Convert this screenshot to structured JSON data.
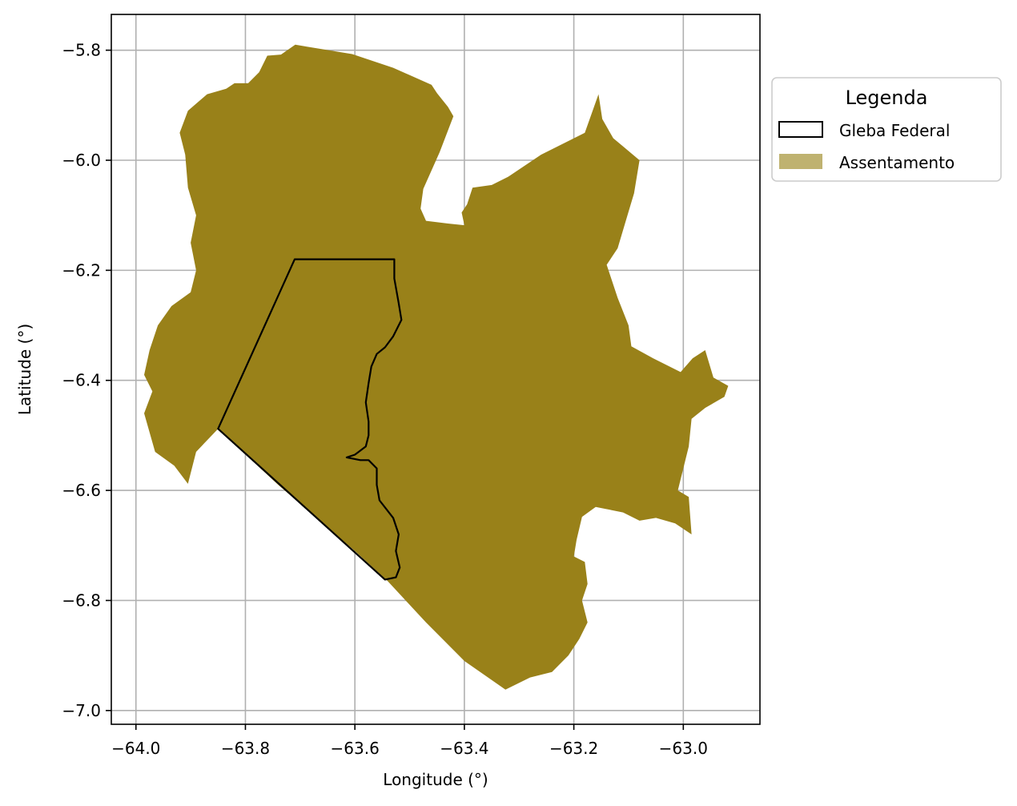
{
  "chart_data": {
    "type": "map",
    "xlabel": "Longitude (°)",
    "ylabel": "Latitude (°)",
    "xlim": [
      -64.045,
      -62.86
    ],
    "ylim": [
      -7.025,
      -5.735
    ],
    "x_ticks": [
      -64.0,
      -63.8,
      -63.6,
      -63.4,
      -63.2,
      -63.0
    ],
    "x_tick_labels": [
      "−64.0",
      "−63.8",
      "−63.6",
      "−63.4",
      "−63.2",
      "−63.0"
    ],
    "y_ticks": [
      -5.8,
      -6.0,
      -6.2,
      -6.4,
      -6.6,
      -6.8,
      -7.0
    ],
    "y_tick_labels": [
      "−5.8",
      "−6.0",
      "−6.2",
      "−6.4",
      "−6.6",
      "−6.8",
      "−7.0"
    ],
    "grid": true,
    "legend_placement": "outside-right-top",
    "legend": {
      "title": "Legenda",
      "entries": [
        {
          "label": "Gleba Federal",
          "style": "outline",
          "color": "#000000"
        },
        {
          "label": "Assentamento",
          "style": "fill",
          "color": "#bfb270"
        }
      ]
    },
    "layers": {
      "assentamento": {
        "name": "Assentamento",
        "color": "#998119",
        "coords": [
          [
            -63.709,
            -5.79
          ],
          [
            -63.605,
            -5.807
          ],
          [
            -63.53,
            -5.832
          ],
          [
            -63.46,
            -5.863
          ],
          [
            -63.45,
            -5.878
          ],
          [
            -63.43,
            -5.903
          ],
          [
            -63.42,
            -5.92
          ],
          [
            -63.445,
            -5.985
          ],
          [
            -63.475,
            -6.052
          ],
          [
            -63.48,
            -6.088
          ],
          [
            -63.47,
            -6.11
          ],
          [
            -63.43,
            -6.115
          ],
          [
            -63.4,
            -6.118
          ],
          [
            -63.405,
            -6.095
          ],
          [
            -63.395,
            -6.08
          ],
          [
            -63.385,
            -6.05
          ],
          [
            -63.35,
            -6.045
          ],
          [
            -63.32,
            -6.03
          ],
          [
            -63.26,
            -5.99
          ],
          [
            -63.18,
            -5.95
          ],
          [
            -63.155,
            -5.88
          ],
          [
            -63.148,
            -5.925
          ],
          [
            -63.128,
            -5.96
          ],
          [
            -63.11,
            -5.975
          ],
          [
            -63.08,
            -6.0
          ],
          [
            -63.09,
            -6.06
          ],
          [
            -63.105,
            -6.11
          ],
          [
            -63.12,
            -6.16
          ],
          [
            -63.14,
            -6.19
          ],
          [
            -63.12,
            -6.25
          ],
          [
            -63.1,
            -6.3
          ],
          [
            -63.095,
            -6.338
          ],
          [
            -63.055,
            -6.36
          ],
          [
            -63.005,
            -6.385
          ],
          [
            -62.983,
            -6.36
          ],
          [
            -62.96,
            -6.345
          ],
          [
            -62.945,
            -6.395
          ],
          [
            -62.918,
            -6.41
          ],
          [
            -62.925,
            -6.43
          ],
          [
            -62.96,
            -6.45
          ],
          [
            -62.985,
            -6.47
          ],
          [
            -62.99,
            -6.52
          ],
          [
            -63.0,
            -6.56
          ],
          [
            -63.01,
            -6.6
          ],
          [
            -62.99,
            -6.612
          ],
          [
            -62.985,
            -6.68
          ],
          [
            -63.015,
            -6.66
          ],
          [
            -63.05,
            -6.65
          ],
          [
            -63.08,
            -6.655
          ],
          [
            -63.11,
            -6.64
          ],
          [
            -63.16,
            -6.63
          ],
          [
            -63.185,
            -6.648
          ],
          [
            -63.195,
            -6.69
          ],
          [
            -63.2,
            -6.72
          ],
          [
            -63.18,
            -6.73
          ],
          [
            -63.175,
            -6.77
          ],
          [
            -63.185,
            -6.8
          ],
          [
            -63.175,
            -6.84
          ],
          [
            -63.19,
            -6.87
          ],
          [
            -63.21,
            -6.9
          ],
          [
            -63.24,
            -6.93
          ],
          [
            -63.28,
            -6.94
          ],
          [
            -63.325,
            -6.962
          ],
          [
            -63.4,
            -6.91
          ],
          [
            -63.47,
            -6.84
          ],
          [
            -63.54,
            -6.765
          ],
          [
            -63.6,
            -6.71
          ],
          [
            -63.67,
            -6.65
          ],
          [
            -63.74,
            -6.59
          ],
          [
            -63.85,
            -6.488
          ],
          [
            -63.89,
            -6.53
          ],
          [
            -63.905,
            -6.588
          ],
          [
            -63.93,
            -6.555
          ],
          [
            -63.965,
            -6.53
          ],
          [
            -63.985,
            -6.46
          ],
          [
            -63.97,
            -6.42
          ],
          [
            -63.985,
            -6.39
          ],
          [
            -63.975,
            -6.345
          ],
          [
            -63.96,
            -6.3
          ],
          [
            -63.935,
            -6.265
          ],
          [
            -63.9,
            -6.24
          ],
          [
            -63.89,
            -6.2
          ],
          [
            -63.9,
            -6.15
          ],
          [
            -63.89,
            -6.1
          ],
          [
            -63.905,
            -6.05
          ],
          [
            -63.91,
            -5.99
          ],
          [
            -63.92,
            -5.95
          ],
          [
            -63.905,
            -5.91
          ],
          [
            -63.87,
            -5.88
          ],
          [
            -63.835,
            -5.87
          ],
          [
            -63.82,
            -5.86
          ],
          [
            -63.795,
            -5.86
          ],
          [
            -63.775,
            -5.84
          ],
          [
            -63.76,
            -5.81
          ],
          [
            -63.735,
            -5.808
          ]
        ]
      },
      "gleba_federal": {
        "name": "Gleba Federal",
        "color": "#000000",
        "coords": [
          [
            -63.71,
            -6.18
          ],
          [
            -63.528,
            -6.18
          ],
          [
            -63.528,
            -6.215
          ],
          [
            -63.52,
            -6.26
          ],
          [
            -63.515,
            -6.29
          ],
          [
            -63.53,
            -6.32
          ],
          [
            -63.545,
            -6.34
          ],
          [
            -63.56,
            -6.352
          ],
          [
            -63.57,
            -6.375
          ],
          [
            -63.575,
            -6.405
          ],
          [
            -63.58,
            -6.44
          ],
          [
            -63.575,
            -6.475
          ],
          [
            -63.575,
            -6.5
          ],
          [
            -63.58,
            -6.52
          ],
          [
            -63.6,
            -6.535
          ],
          [
            -63.615,
            -6.54
          ],
          [
            -63.59,
            -6.545
          ],
          [
            -63.575,
            -6.545
          ],
          [
            -63.56,
            -6.56
          ],
          [
            -63.56,
            -6.59
          ],
          [
            -63.555,
            -6.618
          ],
          [
            -63.53,
            -6.65
          ],
          [
            -63.52,
            -6.68
          ],
          [
            -63.525,
            -6.71
          ],
          [
            -63.518,
            -6.74
          ],
          [
            -63.525,
            -6.758
          ],
          [
            -63.545,
            -6.762
          ],
          [
            -63.85,
            -6.488
          ]
        ]
      }
    }
  }
}
